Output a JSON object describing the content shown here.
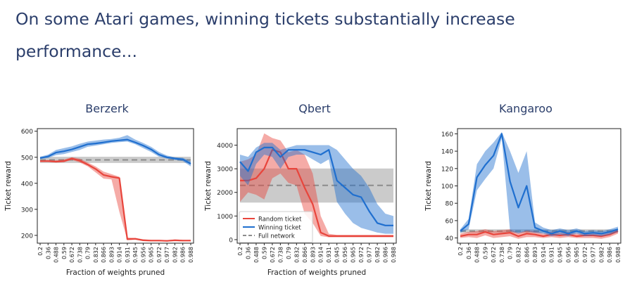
{
  "slide": {
    "headline": "On some Atari games, winning tickets substantially increase performance..."
  },
  "colors": {
    "random": "#e8453c",
    "winning": "#1f6fcf",
    "full": "#8c8c8c"
  },
  "chart_data": [
    {
      "type": "line",
      "title": "Berzerk",
      "xlabel": "Fraction of weights pruned",
      "ylabel": "Ticket reward",
      "categories": [
        "0.2",
        "0.36",
        "0.488",
        "0.59",
        "0.672",
        "0.738",
        "0.79",
        "0.832",
        "0.866",
        "0.893",
        "0.914",
        "0.931",
        "0.945",
        "0.956",
        "0.965",
        "0.972",
        "0.977",
        "0.982",
        "0.986",
        "0.988"
      ],
      "ylim": [
        170,
        610
      ],
      "yticks": [
        200,
        300,
        400,
        500,
        600
      ],
      "series": [
        {
          "key": "winning",
          "values": [
            497,
            503,
            518,
            523,
            530,
            540,
            550,
            553,
            557,
            562,
            565,
            568,
            557,
            545,
            530,
            510,
            500,
            495,
            492,
            475
          ],
          "lower": [
            493,
            497,
            508,
            512,
            520,
            528,
            540,
            545,
            550,
            555,
            558,
            560,
            550,
            535,
            520,
            502,
            495,
            490,
            485,
            465
          ],
          "upper": [
            502,
            510,
            528,
            535,
            542,
            552,
            560,
            564,
            568,
            570,
            575,
            585,
            568,
            555,
            540,
            520,
            507,
            500,
            498,
            485
          ]
        },
        {
          "key": "random",
          "values": [
            485,
            485,
            483,
            485,
            495,
            487,
            472,
            455,
            432,
            425,
            420,
            185,
            187,
            181,
            180,
            180,
            179,
            181,
            180,
            180
          ],
          "lower": [
            482,
            482,
            480,
            481,
            490,
            480,
            465,
            442,
            418,
            415,
            290,
            182,
            183,
            178,
            177,
            177,
            176,
            178,
            177,
            177
          ],
          "upper": [
            488,
            490,
            488,
            492,
            500,
            495,
            480,
            465,
            445,
            435,
            425,
            192,
            190,
            185,
            183,
            183,
            182,
            184,
            183,
            183
          ]
        },
        {
          "key": "full",
          "values": [
            490,
            490,
            490,
            490,
            490,
            490,
            490,
            490,
            490,
            490,
            490,
            490,
            490,
            490,
            490,
            490,
            490,
            490,
            490,
            490
          ],
          "lower": [
            478,
            478,
            478,
            478,
            478,
            478,
            478,
            478,
            478,
            478,
            478,
            478,
            478,
            478,
            478,
            478,
            478,
            478,
            478,
            478
          ],
          "upper": [
            502,
            502,
            502,
            502,
            502,
            502,
            502,
            502,
            502,
            502,
            502,
            502,
            502,
            502,
            502,
            502,
            502,
            502,
            502,
            502
          ]
        }
      ]
    },
    {
      "type": "line",
      "title": "Qbert",
      "xlabel": "Fraction of weights pruned",
      "ylabel": "Ticket reward",
      "categories": [
        "0.2",
        "0.36",
        "0.488",
        "0.59",
        "0.672",
        "0.738",
        "0.79",
        "0.832",
        "0.866",
        "0.893",
        "0.914",
        "0.931",
        "0.945",
        "0.956",
        "0.965",
        "0.972",
        "0.977",
        "0.982",
        "0.986",
        "0.988"
      ],
      "ylim": [
        -150,
        4700
      ],
      "yticks": [
        0,
        1000,
        2000,
        3000,
        4000
      ],
      "legend": {
        "position": "lower-left",
        "entries": [
          "Random ticket",
          "Winning ticket",
          "Full network"
        ]
      },
      "series": [
        {
          "key": "winning",
          "values": [
            3300,
            2900,
            3700,
            3900,
            3900,
            3500,
            3800,
            3800,
            3800,
            3700,
            3600,
            3800,
            2500,
            2200,
            1900,
            1800,
            1200,
            700,
            600,
            600
          ],
          "lower": [
            2700,
            2300,
            3200,
            3600,
            3500,
            3000,
            3500,
            3600,
            3600,
            3400,
            3200,
            3400,
            1600,
            1100,
            700,
            500,
            400,
            300,
            250,
            250
          ],
          "upper": [
            3600,
            3500,
            3900,
            4100,
            4100,
            3800,
            3900,
            4000,
            4000,
            4000,
            4000,
            4000,
            3800,
            3400,
            3000,
            2700,
            2200,
            1500,
            1100,
            1000
          ]
        },
        {
          "key": "random",
          "values": [
            2500,
            2500,
            2600,
            3000,
            3800,
            3700,
            3000,
            3000,
            2200,
            1500,
            300,
            150,
            150,
            150,
            150,
            150,
            150,
            150,
            150,
            150
          ],
          "lower": [
            1600,
            2000,
            1900,
            1700,
            2600,
            2800,
            2400,
            2300,
            1100,
            700,
            150,
            100,
            100,
            100,
            100,
            100,
            100,
            100,
            100,
            100
          ],
          "upper": [
            3300,
            3400,
            3600,
            4500,
            4300,
            4200,
            3700,
            3800,
            3600,
            2800,
            1000,
            250,
            200,
            200,
            200,
            200,
            200,
            200,
            200,
            200
          ]
        },
        {
          "key": "full",
          "values": [
            2300,
            2300,
            2300,
            2300,
            2300,
            2300,
            2300,
            2300,
            2300,
            2300,
            2300,
            2300,
            2300,
            2300,
            2300,
            2300,
            2300,
            2300,
            2300,
            2300
          ],
          "lower": [
            1570,
            1570,
            1570,
            1570,
            1570,
            1570,
            1570,
            1570,
            1570,
            1570,
            1570,
            1570,
            1570,
            1570,
            1570,
            1570,
            1570,
            1570,
            1570,
            1570
          ],
          "upper": [
            3010,
            3010,
            3010,
            3010,
            3010,
            3010,
            3010,
            3010,
            3010,
            3010,
            3010,
            3010,
            3010,
            3010,
            3010,
            3010,
            3010,
            3010,
            3010,
            3010
          ]
        }
      ]
    },
    {
      "type": "line",
      "title": "Kangaroo",
      "xlabel": "",
      "ylabel": "Ticket reward",
      "categories": [
        "0.2",
        "0.36",
        "0.488",
        "0.59",
        "0.672",
        "0.738",
        "0.79",
        "0.832",
        "0.866",
        "0.893",
        "0.914",
        "0.931",
        "0.945",
        "0.956",
        "0.965",
        "0.972",
        "0.977",
        "0.982",
        "0.986",
        "0.988"
      ],
      "ylim": [
        34,
        166
      ],
      "yticks": [
        40,
        60,
        80,
        100,
        120,
        140,
        160
      ],
      "series": [
        {
          "key": "winning",
          "values": [
            48,
            56,
            110,
            124,
            135,
            160,
            105,
            75,
            100,
            52,
            48,
            45,
            48,
            45,
            48,
            45,
            46,
            45,
            47,
            50
          ],
          "lower": [
            46,
            50,
            95,
            108,
            120,
            155,
            48,
            45,
            48,
            46,
            45,
            42,
            44,
            42,
            45,
            42,
            43,
            42,
            44,
            47
          ],
          "upper": [
            50,
            62,
            125,
            140,
            150,
            162,
            140,
            115,
            140,
            58,
            52,
            49,
            51,
            49,
            51,
            48,
            49,
            48,
            50,
            53
          ]
        },
        {
          "key": "random",
          "values": [
            42,
            44,
            44,
            47,
            44,
            45,
            46,
            42,
            45,
            44,
            42,
            44,
            43,
            44,
            42,
            43,
            43,
            42,
            44,
            48
          ],
          "lower": [
            40,
            41,
            40,
            43,
            40,
            41,
            42,
            39,
            41,
            41,
            40,
            41,
            40,
            41,
            40,
            40,
            40,
            39,
            41,
            45
          ],
          "upper": [
            45,
            47,
            48,
            50,
            48,
            49,
            50,
            46,
            49,
            48,
            45,
            47,
            46,
            47,
            45,
            46,
            46,
            45,
            47,
            51
          ]
        },
        {
          "key": "full",
          "values": [
            48,
            48,
            48,
            48,
            48,
            48,
            48,
            48,
            48,
            48,
            48,
            48,
            48,
            48,
            48,
            48,
            48,
            48,
            48,
            48
          ],
          "lower": [
            46,
            46,
            46,
            46,
            46,
            46,
            46,
            46,
            46,
            46,
            46,
            46,
            46,
            46,
            46,
            46,
            46,
            46,
            46,
            46
          ],
          "upper": [
            50,
            50,
            50,
            50,
            50,
            50,
            50,
            50,
            50,
            50,
            50,
            50,
            50,
            50,
            50,
            50,
            50,
            50,
            50,
            50
          ]
        }
      ]
    }
  ]
}
